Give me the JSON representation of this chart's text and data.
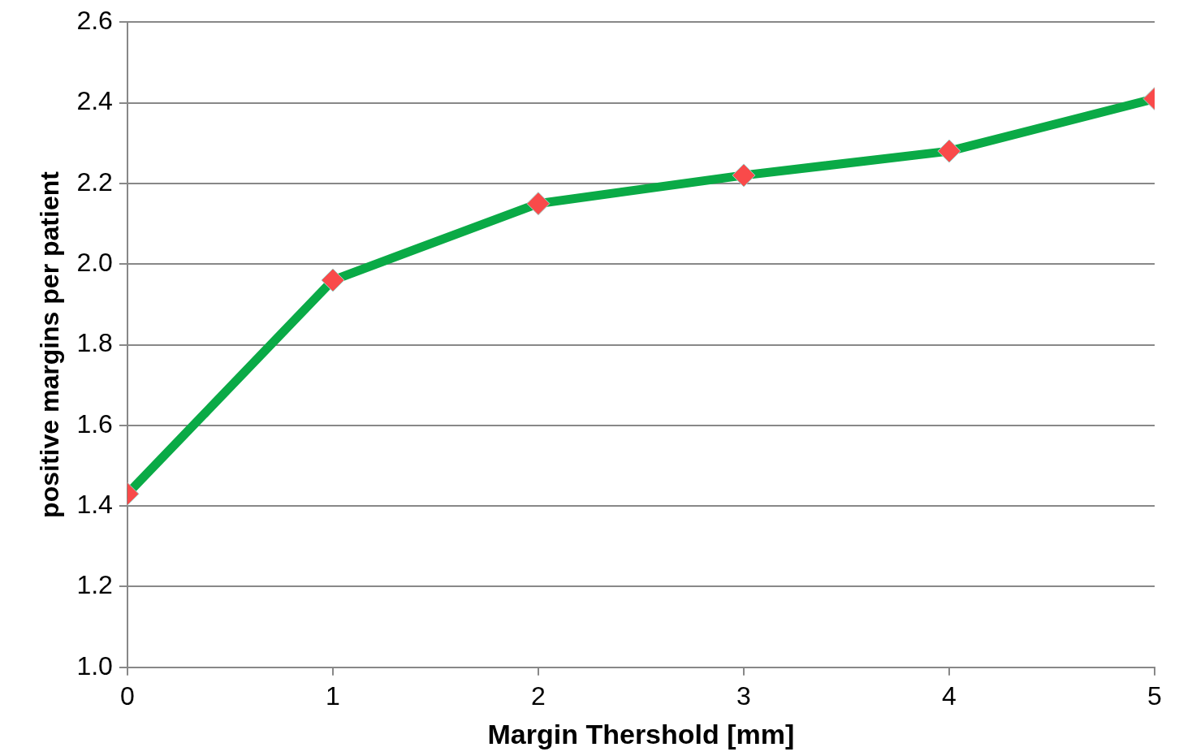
{
  "chart_data": {
    "type": "line",
    "xlabel": "Margin Thershold [mm]",
    "ylabel": "positive margins per patient",
    "x": [
      0,
      1,
      2,
      3,
      4,
      5
    ],
    "series": [
      {
        "color": "#0aaa46",
        "colors": [
          "#f94a4a",
          "#f94a4a",
          "#f94a4a",
          "#f94a4a",
          "#f94a4a",
          "#f94a4a"
        ],
        "values": [
          1.43,
          1.96,
          2.15,
          2.22,
          2.28,
          2.41
        ]
      }
    ],
    "xlim": [
      0,
      5
    ],
    "xticks": [
      0,
      1,
      2,
      3,
      4,
      5
    ],
    "ylim": [
      1.0,
      2.6
    ],
    "yticks": [
      {
        "value": 1.0,
        "label": "1.0"
      },
      {
        "value": 1.2,
        "label": "1.2"
      },
      {
        "value": 1.4,
        "label": "1.4"
      },
      {
        "value": 1.6,
        "label": "1.6"
      },
      {
        "value": 1.8,
        "label": "1.8"
      },
      {
        "value": 2.0,
        "label": "2.0"
      },
      {
        "value": 2.2,
        "label": "2.2"
      },
      {
        "value": 2.4,
        "label": "2.4"
      },
      {
        "value": 2.6,
        "label": "2.6"
      }
    ],
    "grid": "y",
    "marker": "diamond",
    "line_style": "solid"
  }
}
